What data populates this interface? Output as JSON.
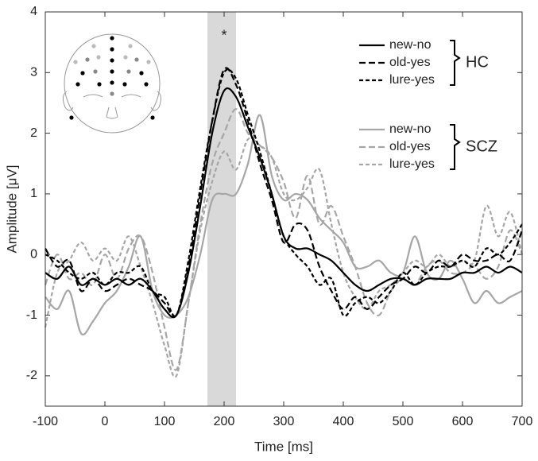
{
  "chart_data": {
    "type": "line",
    "xlabel": "Time [ms]",
    "ylabel": "Amplitude [μV]",
    "xlim": [
      -100,
      700
    ],
    "ylim": [
      -2.5,
      4
    ],
    "xticks": [
      -100,
      0,
      100,
      200,
      300,
      400,
      500,
      600,
      700
    ],
    "yticks": [
      -2,
      -1,
      0,
      1,
      2,
      3,
      4
    ],
    "highlight": [
      172,
      220
    ],
    "highlight_color": "#d9d9d9",
    "annotation": {
      "text": "*",
      "x": 200,
      "y": 3.6
    },
    "x": [
      -100,
      -80,
      -60,
      -40,
      -20,
      0,
      20,
      40,
      60,
      80,
      100,
      120,
      140,
      160,
      180,
      200,
      220,
      240,
      260,
      280,
      300,
      320,
      340,
      360,
      380,
      400,
      420,
      440,
      460,
      480,
      500,
      520,
      540,
      560,
      580,
      600,
      620,
      640,
      660,
      680,
      700
    ],
    "series": [
      {
        "name": "new-no",
        "group": "HC",
        "color": "#000000",
        "dash": "none",
        "values": [
          -0.3,
          -0.4,
          -0.2,
          -0.5,
          -0.4,
          -0.5,
          -0.4,
          -0.5,
          -0.4,
          -0.6,
          -0.9,
          -1.0,
          -0.3,
          0.8,
          2.0,
          2.7,
          2.6,
          2.1,
          1.6,
          1.0,
          0.3,
          0.1,
          0.1,
          0.0,
          -0.1,
          -0.3,
          -0.5,
          -0.6,
          -0.5,
          -0.4,
          -0.4,
          -0.5,
          -0.4,
          -0.4,
          -0.4,
          -0.3,
          -0.3,
          -0.2,
          -0.3,
          -0.2,
          -0.3
        ]
      },
      {
        "name": "old-yes",
        "group": "HC",
        "color": "#000000",
        "dash": "8 4",
        "values": [
          0.1,
          -0.2,
          -0.1,
          -0.6,
          -0.4,
          -0.6,
          -0.5,
          -0.4,
          -0.5,
          -0.6,
          -0.8,
          -1.0,
          -0.2,
          1.0,
          2.2,
          3.05,
          2.8,
          2.2,
          1.5,
          0.9,
          0.2,
          0.5,
          0.4,
          -0.2,
          -0.6,
          -0.9,
          -0.7,
          -0.9,
          -0.7,
          -0.5,
          -0.4,
          -0.2,
          -0.3,
          -0.1,
          -0.2,
          0.0,
          -0.1,
          -0.1,
          0.0,
          -0.1,
          0.4
        ]
      },
      {
        "name": "lure-yes",
        "group": "HC",
        "color": "#000000",
        "dash": "5 3",
        "values": [
          0.0,
          -0.1,
          -0.3,
          -0.4,
          -0.3,
          -0.5,
          -0.3,
          -0.3,
          -0.2,
          -0.6,
          -0.7,
          -1.0,
          -0.1,
          1.1,
          2.2,
          3.0,
          2.9,
          2.3,
          1.7,
          1.0,
          0.3,
          0.0,
          -0.2,
          -0.5,
          -0.4,
          -1.0,
          -0.8,
          -0.7,
          -0.8,
          -0.6,
          -0.3,
          -0.5,
          -0.3,
          -0.2,
          -0.2,
          -0.1,
          -0.2,
          0.1,
          0.0,
          0.2,
          0.5
        ]
      },
      {
        "name": "new-no",
        "group": "SCZ",
        "color": "#a6a6a6",
        "dash": "none",
        "values": [
          -0.7,
          -0.9,
          -0.6,
          -1.3,
          -1.1,
          -0.8,
          -0.6,
          -0.2,
          0.3,
          -0.6,
          -1.0,
          -1.0,
          -0.7,
          0.0,
          0.9,
          1.0,
          1.0,
          1.5,
          2.3,
          1.3,
          0.9,
          1.0,
          0.9,
          0.6,
          0.4,
          0.2,
          -0.2,
          -0.2,
          -0.1,
          -0.3,
          -0.3,
          0.3,
          -0.3,
          -0.4,
          -0.1,
          -0.4,
          -0.8,
          -0.6,
          -0.8,
          -0.7,
          -0.6
        ]
      },
      {
        "name": "old-yes",
        "group": "SCZ",
        "color": "#a6a6a6",
        "dash": "8 4",
        "values": [
          -0.5,
          0.0,
          -0.4,
          -0.3,
          -0.5,
          0.0,
          -0.4,
          0.1,
          0.3,
          -0.3,
          -1.2,
          -1.9,
          -0.8,
          0.5,
          1.5,
          2.0,
          2.4,
          2.0,
          1.8,
          1.6,
          1.2,
          0.6,
          1.3,
          0.5,
          0.8,
          0.3,
          -0.2,
          -0.8,
          -1.0,
          -0.6,
          -0.4,
          -0.5,
          -0.2,
          -0.1,
          -0.3,
          -0.3,
          -0.2,
          -0.4,
          -0.2,
          0.4,
          0.0
        ]
      },
      {
        "name": "lure-yes",
        "group": "SCZ",
        "color": "#a6a6a6",
        "dash": "5 3",
        "values": [
          -1.2,
          -0.3,
          -0.1,
          0.2,
          -0.1,
          0.1,
          -0.1,
          0.3,
          -0.2,
          -0.8,
          -1.5,
          -2.0,
          -0.8,
          0.4,
          1.2,
          1.7,
          1.4,
          1.9,
          1.8,
          1.6,
          1.0,
          0.9,
          1.1,
          1.4,
          0.5,
          -0.3,
          -0.7,
          -0.9,
          -0.6,
          -0.5,
          -0.3,
          -0.1,
          -0.2,
          0.0,
          -0.2,
          -0.1,
          -0.1,
          0.8,
          0.3,
          0.7,
          0.0
        ]
      }
    ]
  }
}
